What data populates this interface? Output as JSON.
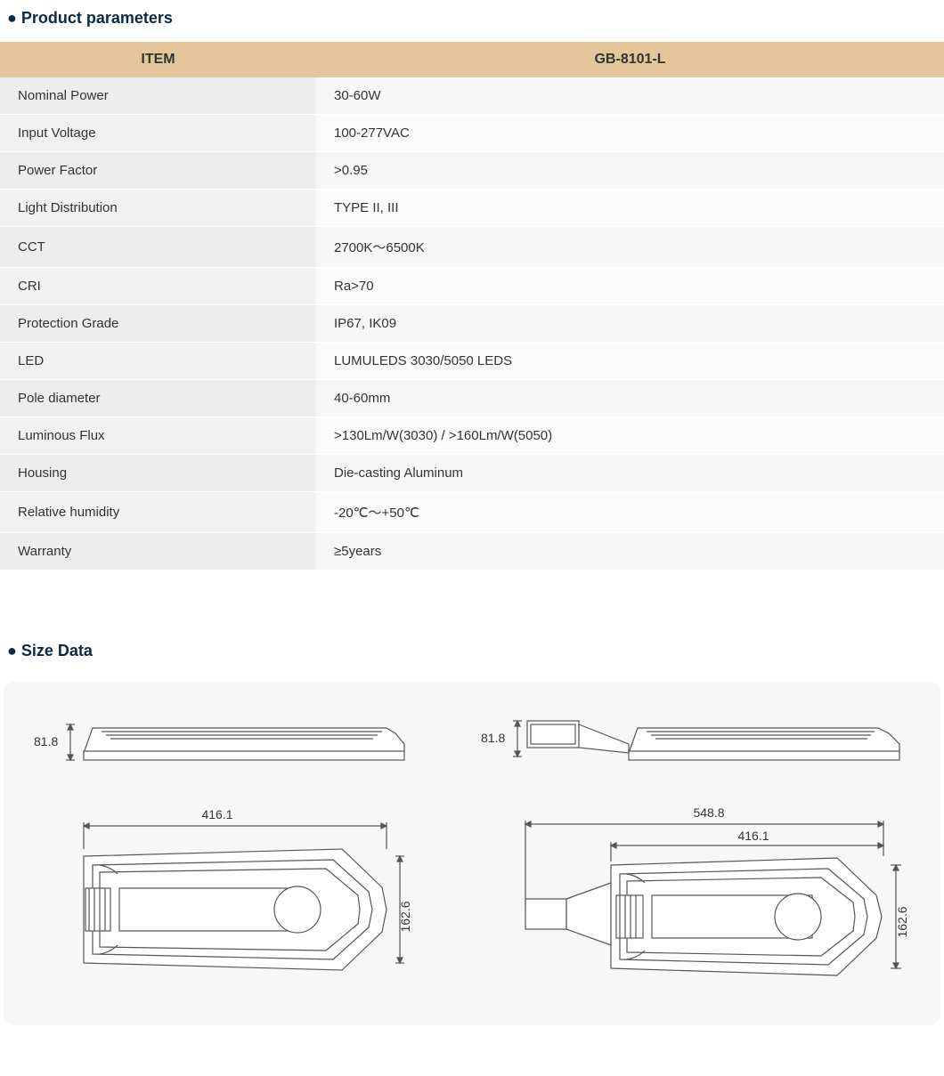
{
  "sections": {
    "parameters_title": "● Product parameters",
    "size_title": "● Size Data"
  },
  "table": {
    "header_item": "ITEM",
    "header_model": "GB-8101-L",
    "header_bg": "#e3c79b",
    "label_bg": "#ededed",
    "value_bg": "#f7f7f7",
    "rows": [
      {
        "label": "Nominal Power",
        "value": "30-60W"
      },
      {
        "label": "Input Voltage",
        "value": "100-277VAC"
      },
      {
        "label": "Power Factor",
        "value": ">0.95"
      },
      {
        "label": "Light Distribution",
        "value": "TYPE II, III"
      },
      {
        "label": "CCT",
        "value": "2700K～6500K"
      },
      {
        "label": "CRI",
        "value": "Ra>70"
      },
      {
        "label": "Protection Grade",
        "value": "IP67, IK09"
      },
      {
        "label": "LED",
        "value": "LUMULEDS 3030/5050 LEDS"
      },
      {
        "label": "Pole diameter",
        "value": "40-60mm"
      },
      {
        "label": "Luminous Flux",
        "value": ">130Lm/W(3030)     /   >160Lm/W(5050)"
      },
      {
        "label": "Housing",
        "value": "Die-casting Aluminum"
      },
      {
        "label": "Relative humidity",
        "value": "-20℃～+50℃"
      },
      {
        "label": "Warranty",
        "value": "≥5years"
      }
    ]
  },
  "diagram": {
    "panel_bg": "#f7f7f7",
    "stroke": "#555555",
    "fill": "#ffffff",
    "text_color": "#333333",
    "font_size": 14,
    "left": {
      "side_height_label": "81.8",
      "top_width_label": "416.1",
      "top_height_label": "162.6"
    },
    "right": {
      "side_height_label": "81.8",
      "top_outer_width_label": "548.8",
      "top_inner_width_label": "416.1",
      "top_height_label": "162.6"
    }
  }
}
